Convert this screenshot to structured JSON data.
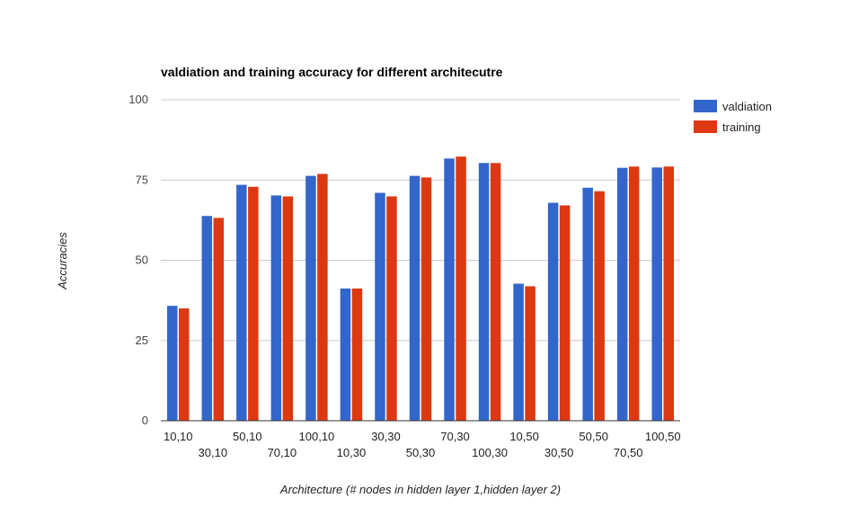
{
  "chart_data": {
    "type": "bar",
    "title": "valdiation and training accuracy for different architecutre",
    "xlabel": "Architecture (# nodes in hidden layer 1,hidden layer 2)",
    "ylabel": "Accuracies",
    "ylim": [
      0,
      100
    ],
    "yticks": [
      "0",
      "25",
      "50",
      "75",
      "100"
    ],
    "grid": true,
    "legend_position": "right",
    "categories": [
      "10,10",
      "30,10",
      "50,10",
      "70,10",
      "100,10",
      "10,30",
      "30,30",
      "50,30",
      "70,30",
      "100,30",
      "10,50",
      "30,50",
      "50,50",
      "70,50",
      "100,50"
    ],
    "series": [
      {
        "name": "valdiation",
        "color": "#3366cc",
        "values": [
          35.8,
          63.8,
          73.5,
          70.2,
          76.3,
          41.2,
          71.0,
          76.3,
          81.7,
          80.3,
          42.7,
          67.9,
          72.6,
          78.8,
          78.9
        ]
      },
      {
        "name": "training",
        "color": "#dc3912",
        "values": [
          35.0,
          63.2,
          72.9,
          69.9,
          76.9,
          41.2,
          69.9,
          75.8,
          82.3,
          80.3,
          41.9,
          67.1,
          71.5,
          79.2,
          79.2
        ]
      }
    ]
  }
}
